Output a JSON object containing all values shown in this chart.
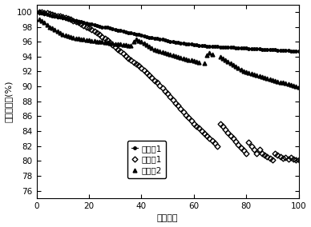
{
  "title": "",
  "xlabel": "循环次数",
  "ylabel": "容量保持率(%)",
  "xlim": [
    0,
    100
  ],
  "ylim": [
    75,
    101
  ],
  "yticks": [
    76,
    78,
    80,
    82,
    84,
    86,
    88,
    90,
    92,
    94,
    96,
    98,
    100
  ],
  "xticks": [
    0,
    20,
    40,
    60,
    80,
    100
  ],
  "legend_labels": [
    "实施例1",
    "对比例1",
    "对比例2"
  ],
  "series1_x": [
    1,
    2,
    3,
    4,
    5,
    6,
    7,
    8,
    9,
    10,
    11,
    12,
    13,
    14,
    15,
    16,
    17,
    18,
    19,
    20,
    21,
    22,
    23,
    24,
    25,
    26,
    27,
    28,
    29,
    30,
    31,
    32,
    33,
    34,
    35,
    36,
    37,
    38,
    39,
    40,
    41,
    42,
    43,
    44,
    45,
    46,
    47,
    48,
    49,
    50,
    51,
    52,
    53,
    54,
    55,
    56,
    57,
    58,
    59,
    60,
    61,
    62,
    63,
    64,
    65,
    66,
    67,
    68,
    69,
    70,
    71,
    72,
    73,
    74,
    75,
    76,
    77,
    78,
    79,
    80,
    81,
    82,
    83,
    84,
    85,
    86,
    87,
    88,
    89,
    90,
    91,
    92,
    93,
    94,
    95,
    96,
    97,
    98,
    99,
    100
  ],
  "series1_y": [
    100.0,
    99.9,
    99.8,
    99.7,
    99.6,
    99.5,
    99.4,
    99.35,
    99.3,
    99.2,
    99.1,
    99.0,
    98.95,
    98.9,
    98.8,
    98.7,
    98.65,
    98.6,
    98.5,
    98.4,
    98.35,
    98.3,
    98.2,
    98.1,
    98.0,
    97.95,
    97.9,
    97.8,
    97.7,
    97.6,
    97.55,
    97.5,
    97.4,
    97.3,
    97.2,
    97.15,
    97.1,
    97.0,
    96.95,
    96.9,
    96.8,
    96.7,
    96.6,
    96.55,
    96.5,
    96.4,
    96.35,
    96.3,
    96.2,
    96.1,
    96.05,
    96.0,
    95.95,
    95.9,
    95.85,
    95.8,
    95.75,
    95.7,
    95.65,
    95.6,
    95.55,
    95.5,
    95.48,
    95.45,
    95.42,
    95.4,
    95.38,
    95.36,
    95.34,
    95.32,
    95.3,
    95.28,
    95.26,
    95.24,
    95.22,
    95.2,
    95.18,
    95.16,
    95.14,
    95.12,
    95.1,
    95.08,
    95.06,
    95.04,
    95.02,
    95.0,
    94.98,
    94.96,
    94.94,
    94.92,
    94.9,
    94.88,
    94.86,
    94.84,
    94.82,
    94.8,
    94.78,
    94.76,
    94.74,
    94.72
  ],
  "series2_x": [
    1,
    2,
    3,
    4,
    5,
    6,
    7,
    8,
    9,
    10,
    11,
    12,
    13,
    14,
    15,
    16,
    17,
    18,
    19,
    20,
    21,
    22,
    23,
    24,
    25,
    26,
    27,
    28,
    29,
    30,
    31,
    32,
    33,
    34,
    35,
    36,
    37,
    38,
    39,
    40,
    41,
    42,
    43,
    44,
    45,
    46,
    47,
    48,
    49,
    50,
    51,
    52,
    53,
    54,
    55,
    56,
    57,
    58,
    59,
    60,
    61,
    62,
    63,
    64,
    65,
    66,
    67,
    68,
    69,
    70,
    71,
    72,
    73,
    74,
    75,
    76,
    77,
    78,
    79,
    80,
    81,
    82,
    83,
    84,
    85,
    86,
    87,
    88,
    89,
    90,
    91,
    92,
    93,
    94,
    95,
    96,
    97,
    98,
    99,
    100
  ],
  "series2_y": [
    100.0,
    99.95,
    99.9,
    99.85,
    99.8,
    99.7,
    99.6,
    99.5,
    99.4,
    99.3,
    99.2,
    99.1,
    99.0,
    98.85,
    98.7,
    98.55,
    98.4,
    98.2,
    98.0,
    97.8,
    97.6,
    97.4,
    97.2,
    97.0,
    96.7,
    96.5,
    96.2,
    95.9,
    95.6,
    95.3,
    95.0,
    94.7,
    94.4,
    94.1,
    93.8,
    93.5,
    93.2,
    93.0,
    92.8,
    92.5,
    92.2,
    91.8,
    91.5,
    91.2,
    90.8,
    90.5,
    90.1,
    89.8,
    89.4,
    89.0,
    88.6,
    88.2,
    87.8,
    87.4,
    87.0,
    86.6,
    86.2,
    85.8,
    85.4,
    85.0,
    84.7,
    84.4,
    84.0,
    83.7,
    83.4,
    83.0,
    82.7,
    82.4,
    82.0,
    85.0,
    84.6,
    84.2,
    83.8,
    83.4,
    83.0,
    82.6,
    82.2,
    81.8,
    81.4,
    81.0,
    82.5,
    82.0,
    81.5,
    81.0,
    81.5,
    81.0,
    80.8,
    80.6,
    80.4,
    80.2,
    81.0,
    80.8,
    80.6,
    80.4,
    80.5,
    80.3,
    80.5,
    80.3,
    80.2,
    80.1
  ],
  "series3_x": [
    1,
    2,
    3,
    4,
    5,
    6,
    7,
    8,
    9,
    10,
    11,
    12,
    13,
    14,
    15,
    16,
    17,
    18,
    19,
    20,
    21,
    22,
    23,
    24,
    25,
    26,
    27,
    28,
    29,
    30,
    31,
    32,
    33,
    34,
    35,
    36,
    37,
    38,
    39,
    40,
    41,
    42,
    43,
    44,
    45,
    46,
    47,
    48,
    49,
    50,
    51,
    52,
    53,
    54,
    55,
    56,
    57,
    58,
    59,
    60,
    61,
    62,
    64,
    65,
    66,
    67,
    70,
    71,
    72,
    73,
    74,
    75,
    76,
    77,
    78,
    79,
    80,
    81,
    82,
    83,
    84,
    85,
    86,
    87,
    88,
    89,
    90,
    91,
    92,
    93,
    94,
    95,
    96,
    97,
    98,
    99,
    100
  ],
  "series3_y": [
    99.0,
    98.8,
    98.6,
    98.3,
    98.0,
    97.8,
    97.6,
    97.4,
    97.2,
    97.0,
    96.9,
    96.8,
    96.7,
    96.6,
    96.5,
    96.4,
    96.35,
    96.3,
    96.25,
    96.2,
    96.15,
    96.1,
    96.05,
    96.0,
    96.0,
    95.95,
    95.9,
    95.85,
    95.8,
    95.75,
    95.7,
    95.65,
    95.6,
    95.55,
    95.5,
    95.5,
    96.0,
    96.3,
    96.1,
    96.0,
    95.8,
    95.6,
    95.4,
    95.2,
    95.0,
    94.8,
    94.7,
    94.6,
    94.5,
    94.4,
    94.3,
    94.2,
    94.1,
    94.0,
    93.9,
    93.8,
    93.7,
    93.6,
    93.5,
    93.4,
    93.3,
    93.2,
    93.1,
    94.2,
    94.5,
    94.3,
    94.0,
    93.8,
    93.5,
    93.3,
    93.1,
    92.9,
    92.7,
    92.5,
    92.3,
    92.1,
    91.9,
    91.8,
    91.7,
    91.6,
    91.5,
    91.4,
    91.3,
    91.2,
    91.1,
    91.0,
    90.9,
    90.8,
    90.7,
    90.6,
    90.5,
    90.4,
    90.3,
    90.2,
    90.1,
    90.0,
    89.9
  ],
  "background_color": "#ffffff"
}
